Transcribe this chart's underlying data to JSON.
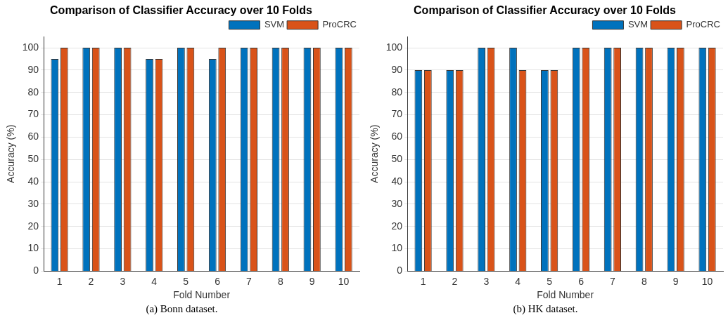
{
  "chart_data": [
    {
      "type": "bar",
      "title": "Comparison of Classifier Accuracy over 10 Folds",
      "xlabel": "Fold Number",
      "ylabel": "Accuracy (%)",
      "categories": [
        "1",
        "2",
        "3",
        "4",
        "5",
        "6",
        "7",
        "8",
        "9",
        "10"
      ],
      "series": [
        {
          "name": "SVM",
          "color": "#0072bd",
          "values": [
            95,
            100,
            100,
            95,
            100,
            95,
            100,
            100,
            100,
            100
          ]
        },
        {
          "name": "ProCRC",
          "color": "#d95319",
          "values": [
            100,
            100,
            100,
            95,
            100,
            100,
            100,
            100,
            100,
            100
          ]
        }
      ],
      "ylim": [
        0,
        105
      ],
      "yticks": [
        0,
        10,
        20,
        30,
        40,
        50,
        60,
        70,
        80,
        90,
        100
      ],
      "grid": "y",
      "legend": "top right",
      "annotations": [
        "(a) Bonn dataset."
      ]
    },
    {
      "type": "bar",
      "title": "Comparison of Classifier Accuracy over 10 Folds",
      "xlabel": "Fold Number",
      "ylabel": "Accuracy (%)",
      "categories": [
        "1",
        "2",
        "3",
        "4",
        "5",
        "6",
        "7",
        "8",
        "9",
        "10"
      ],
      "series": [
        {
          "name": "SVM",
          "color": "#0072bd",
          "values": [
            90,
            90,
            100,
            100,
            90,
            100,
            100,
            100,
            100,
            100
          ]
        },
        {
          "name": "ProCRC",
          "color": "#d95319",
          "values": [
            90,
            90,
            100,
            90,
            90,
            100,
            100,
            100,
            100,
            100
          ]
        }
      ],
      "ylim": [
        0,
        105
      ],
      "yticks": [
        0,
        10,
        20,
        30,
        40,
        50,
        60,
        70,
        80,
        90,
        100
      ],
      "grid": "y",
      "legend": "top right",
      "annotations": [
        "(b) HK dataset."
      ]
    }
  ]
}
